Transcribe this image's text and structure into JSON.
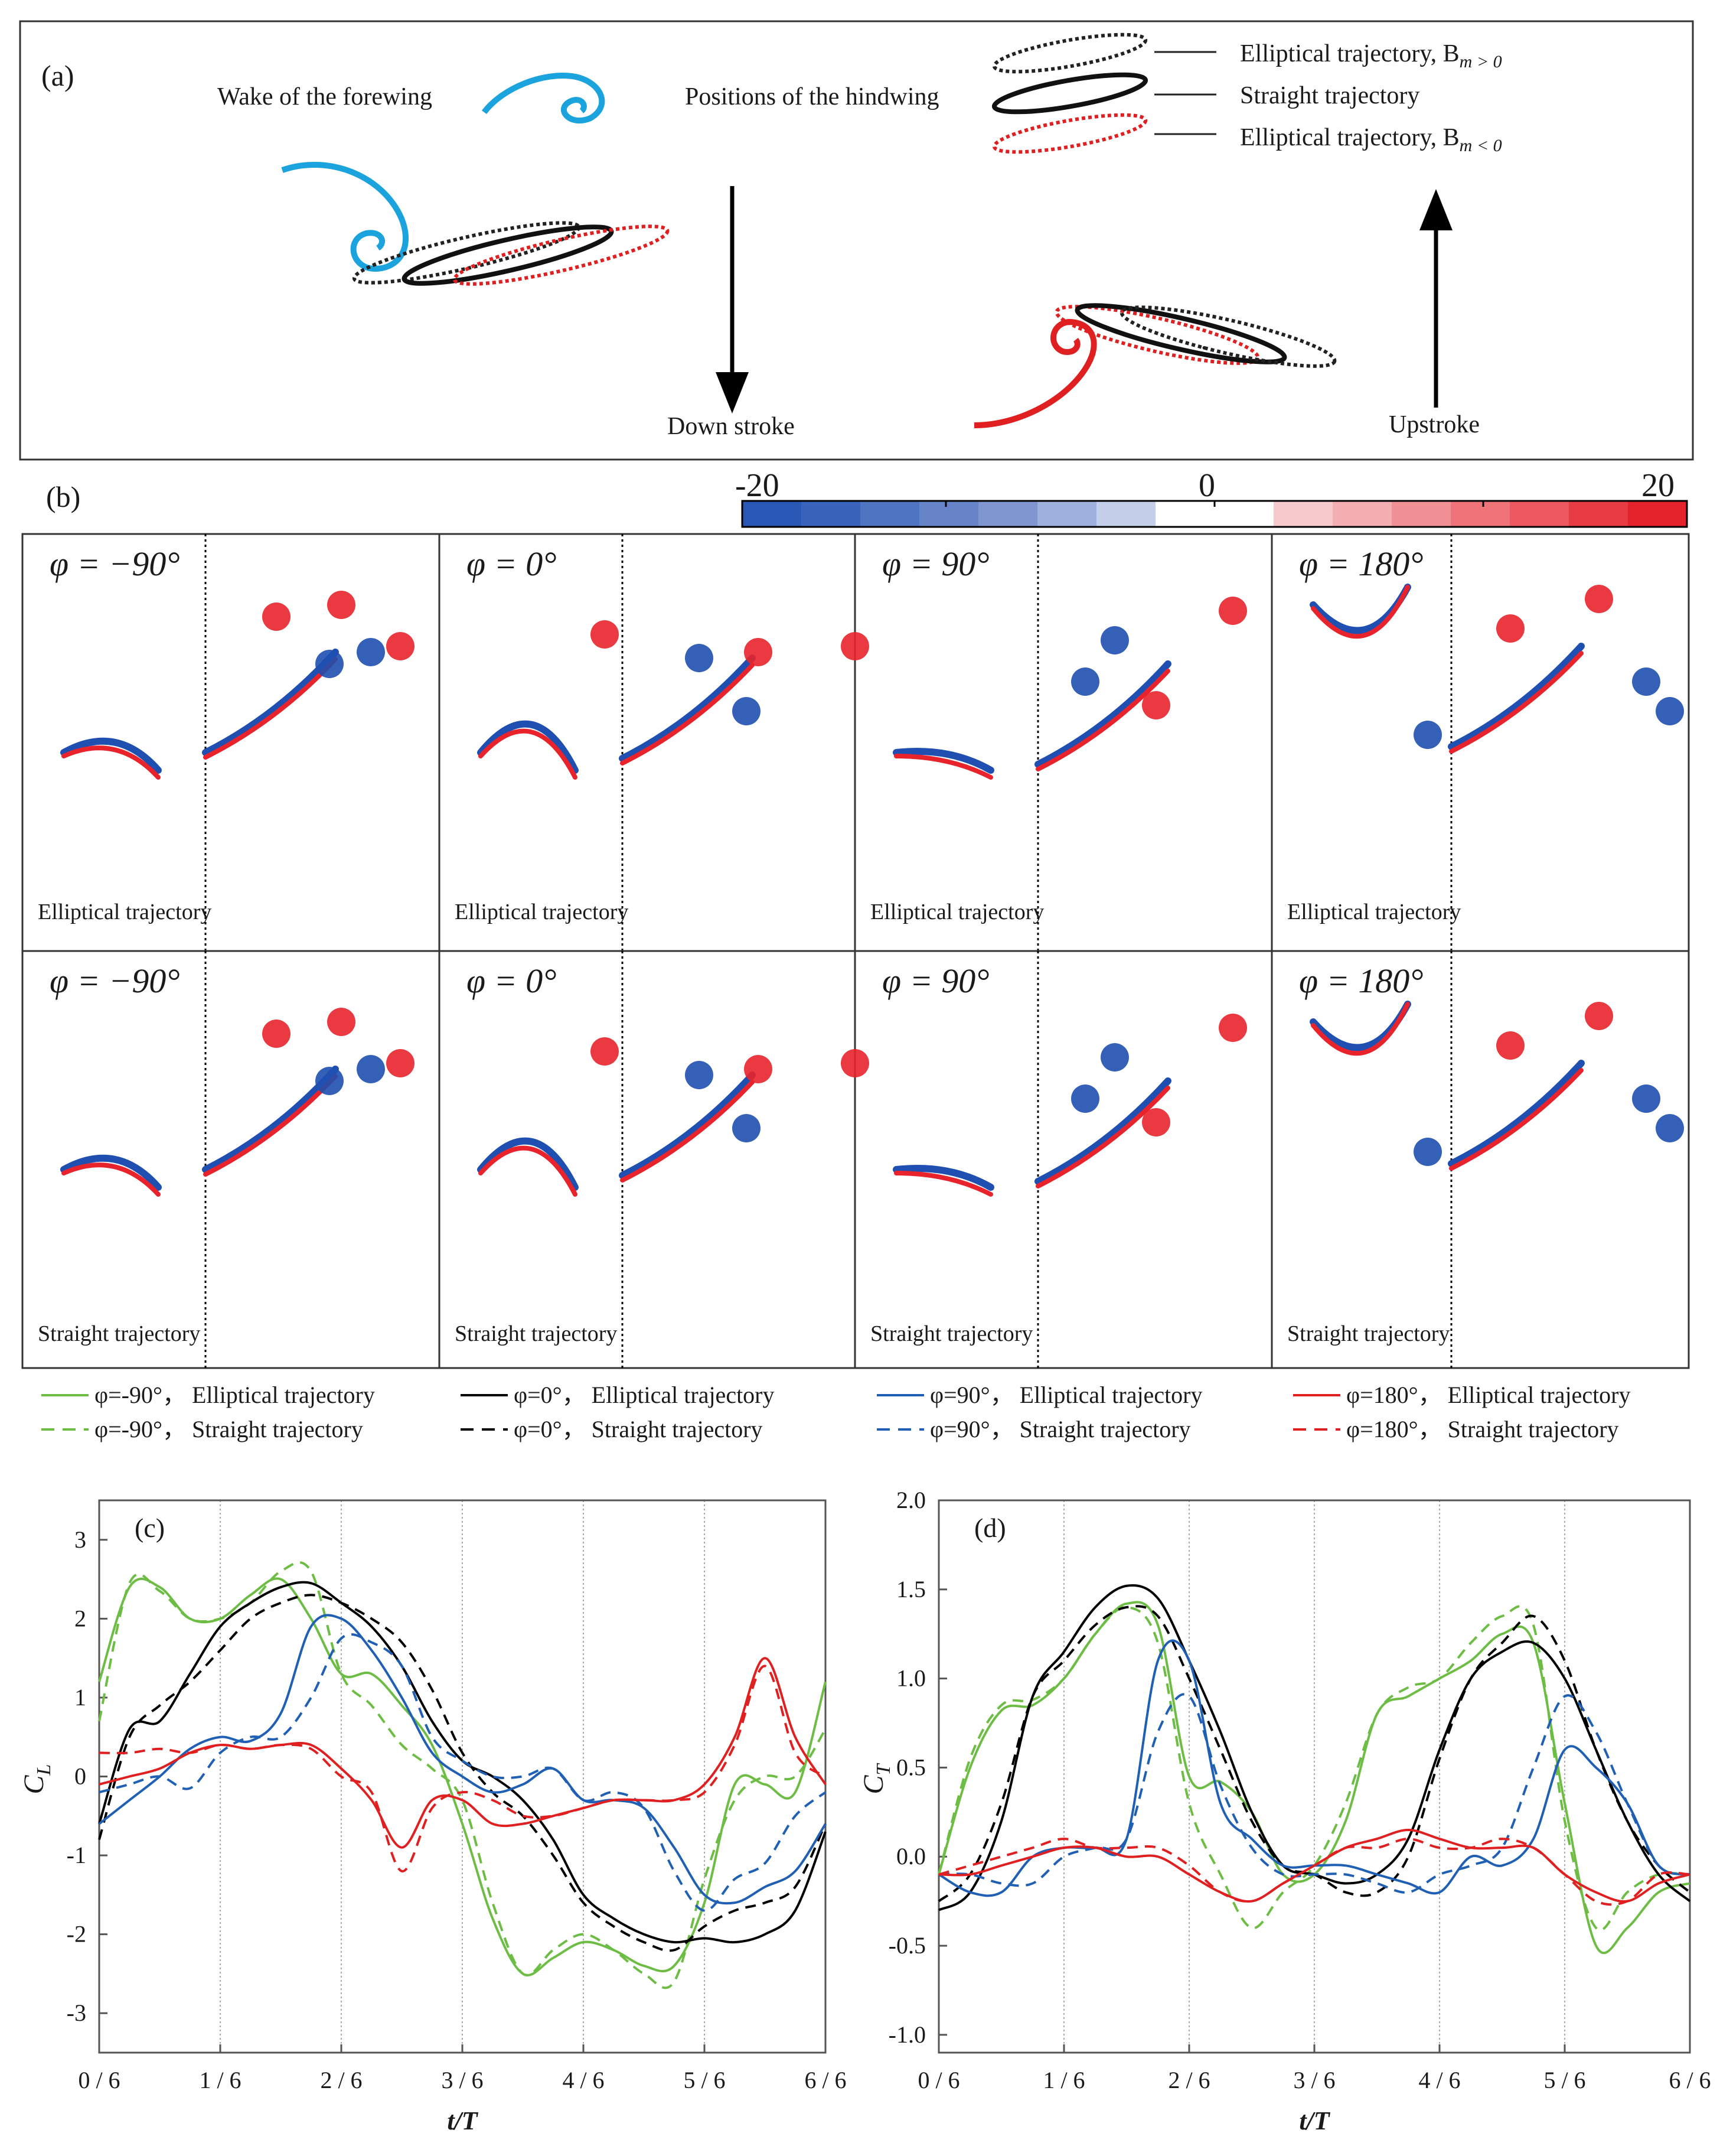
{
  "panel_a": {
    "label": "(a)",
    "wake_label": "Wake of the forewing",
    "positions_label": "Positions of the hindwing",
    "legend": [
      "Elliptical trajectory, B",
      "Straight trajectory",
      "Elliptical trajectory, B"
    ],
    "bm_pos": "m > 0",
    "bm_neg": "m < 0",
    "down_label": "Down stroke",
    "up_label": "Upstroke"
  },
  "panel_b": {
    "label": "(b)",
    "colorbar": {
      "min": "-20",
      "mid": "0",
      "max": "20"
    },
    "phases": [
      "φ = −90°",
      "φ = 0°",
      "φ = 90°",
      "φ = 180°"
    ],
    "row_labels": [
      "Elliptical trajectory",
      "Straight trajectory"
    ],
    "colors": {
      "red": "#e8232b",
      "blue": "#1f4fb0"
    }
  },
  "legend": {
    "items": [
      {
        "label": "φ=-90°， Elliptical trajectory",
        "color": "#6dbd45",
        "dash": false
      },
      {
        "label": "φ=0°， Elliptical trajectory",
        "color": "#000000",
        "dash": false
      },
      {
        "label": "φ=90°， Elliptical trajectory",
        "color": "#1f5fb4",
        "dash": false
      },
      {
        "label": "φ=180°， Elliptical trajectory",
        "color": "#e02020",
        "dash": false
      },
      {
        "label": "φ=-90°， Straight trajectory",
        "color": "#6dbd45",
        "dash": true
      },
      {
        "label": "φ=0°， Straight trajectory",
        "color": "#000000",
        "dash": true
      },
      {
        "label": "φ=90°， Straight trajectory",
        "color": "#1f5fb4",
        "dash": true
      },
      {
        "label": "φ=180°， Straight trajectory",
        "color": "#e02020",
        "dash": true
      }
    ]
  },
  "chart_data": [
    {
      "type": "line",
      "label": "(c)",
      "ylabel": "C",
      "ysub": "L",
      "xlabel": "t/T",
      "xticks": [
        "0 / 6",
        "1 / 6",
        "2 / 6",
        "3 / 6",
        "4 / 6",
        "5 / 6",
        "6 / 6"
      ],
      "yticks": [
        "-3",
        "-2",
        "-1",
        "0",
        "1",
        "2",
        "3"
      ],
      "xlim": [
        0,
        6
      ],
      "ylim": [
        -3.5,
        3.5
      ],
      "x": [
        0,
        0.25,
        0.5,
        0.75,
        1,
        1.25,
        1.5,
        1.75,
        2,
        2.25,
        2.5,
        2.75,
        3,
        3.25,
        3.5,
        3.75,
        4,
        4.25,
        4.5,
        4.75,
        5,
        5.25,
        5.5,
        5.75,
        6
      ],
      "series": [
        {
          "name": "φ=-90°, Elliptical",
          "color": "#6dbd45",
          "dash": false,
          "values": [
            1.2,
            2.4,
            2.4,
            2.0,
            2.0,
            2.3,
            2.5,
            2.0,
            1.3,
            1.3,
            0.9,
            0.4,
            -0.6,
            -1.8,
            -2.5,
            -2.3,
            -2.1,
            -2.2,
            -2.4,
            -2.4,
            -1.6,
            -0.1,
            -0.1,
            -0.2,
            1.2
          ]
        },
        {
          "name": "φ=-90°, Straight",
          "color": "#6dbd45",
          "dash": true,
          "values": [
            0.7,
            2.45,
            2.35,
            2.0,
            2.0,
            2.2,
            2.6,
            2.6,
            1.3,
            0.9,
            0.4,
            0.1,
            -0.3,
            -1.6,
            -2.5,
            -2.2,
            -2.0,
            -2.2,
            -2.5,
            -2.6,
            -1.3,
            -0.3,
            0.0,
            0.0,
            0.6
          ]
        },
        {
          "name": "φ=0°, Elliptical",
          "color": "#000000",
          "dash": false,
          "values": [
            -0.6,
            0.6,
            0.7,
            1.3,
            1.9,
            2.2,
            2.4,
            2.45,
            2.2,
            1.9,
            1.4,
            0.7,
            0.2,
            0.0,
            -0.3,
            -0.8,
            -1.5,
            -1.8,
            -2.0,
            -2.1,
            -2.05,
            -2.1,
            -2.0,
            -1.7,
            -0.7
          ]
        },
        {
          "name": "φ=0°, Straight",
          "color": "#000000",
          "dash": true,
          "values": [
            -0.8,
            0.5,
            0.9,
            1.2,
            1.6,
            2.0,
            2.2,
            2.3,
            2.2,
            2.0,
            1.7,
            1.1,
            0.3,
            -0.2,
            -0.5,
            -1.0,
            -1.6,
            -1.9,
            -2.1,
            -2.2,
            -1.9,
            -1.7,
            -1.6,
            -1.4,
            -0.6
          ]
        },
        {
          "name": "φ=90°, Elliptical",
          "color": "#1f5fb4",
          "dash": false,
          "values": [
            -0.6,
            -0.3,
            0.0,
            0.35,
            0.5,
            0.45,
            0.8,
            1.9,
            2.0,
            1.6,
            1.0,
            0.3,
            0.0,
            -0.2,
            -0.1,
            0.1,
            -0.3,
            -0.3,
            -0.4,
            -0.9,
            -1.5,
            -1.6,
            -1.4,
            -1.2,
            -0.6
          ]
        },
        {
          "name": "φ=90°, Straight",
          "color": "#1f5fb4",
          "dash": true,
          "values": [
            -0.2,
            -0.1,
            0.0,
            -0.15,
            0.3,
            0.5,
            0.5,
            1.0,
            1.75,
            1.7,
            1.4,
            0.5,
            0.2,
            0.0,
            0.0,
            0.1,
            -0.3,
            -0.2,
            -0.4,
            -1.2,
            -1.7,
            -1.3,
            -1.1,
            -0.5,
            -0.2
          ]
        },
        {
          "name": "φ=180°, Elliptical",
          "color": "#e02020",
          "dash": false,
          "values": [
            -0.1,
            0.0,
            0.1,
            0.3,
            0.4,
            0.35,
            0.4,
            0.4,
            0.1,
            -0.3,
            -0.9,
            -0.3,
            -0.3,
            -0.6,
            -0.6,
            -0.5,
            -0.4,
            -0.3,
            -0.3,
            -0.3,
            -0.1,
            0.5,
            1.5,
            0.5,
            -0.1
          ]
        },
        {
          "name": "φ=180°, Straight",
          "color": "#e02020",
          "dash": true,
          "values": [
            0.3,
            0.3,
            0.35,
            0.3,
            0.4,
            0.35,
            0.4,
            0.35,
            0.0,
            -0.2,
            -1.2,
            -0.4,
            -0.2,
            -0.3,
            -0.5,
            -0.5,
            -0.4,
            -0.3,
            -0.3,
            -0.3,
            -0.2,
            0.4,
            1.4,
            0.3,
            0.0
          ]
        }
      ]
    },
    {
      "type": "line",
      "label": "(d)",
      "ylabel": "C",
      "ysub": "T",
      "xlabel": "t/T",
      "xticks": [
        "0 / 6",
        "1 / 6",
        "2 / 6",
        "3 / 6",
        "4 / 6",
        "5 / 6",
        "6 / 6"
      ],
      "yticks": [
        "-1.0",
        "-0.5",
        "0.0",
        "0.5",
        "1.0",
        "1.5",
        "2.0"
      ],
      "xlim": [
        0,
        6
      ],
      "ylim": [
        -1.1,
        2.0
      ],
      "x": [
        0,
        0.25,
        0.5,
        0.75,
        1,
        1.25,
        1.5,
        1.75,
        2,
        2.25,
        2.5,
        2.75,
        3,
        3.25,
        3.5,
        3.75,
        4,
        4.25,
        4.5,
        4.75,
        5,
        5.25,
        5.5,
        5.75,
        6
      ],
      "series": [
        {
          "name": "φ=-90°, Elliptical",
          "color": "#6dbd45",
          "dash": false,
          "values": [
            -0.1,
            0.5,
            0.82,
            0.85,
            1.0,
            1.25,
            1.42,
            1.3,
            0.45,
            0.42,
            0.25,
            -0.1,
            -0.1,
            0.2,
            0.8,
            0.9,
            1.0,
            1.1,
            1.25,
            1.2,
            0.3,
            -0.5,
            -0.4,
            -0.2,
            -0.15
          ]
        },
        {
          "name": "φ=-90°, Straight",
          "color": "#6dbd45",
          "dash": true,
          "values": [
            -0.1,
            0.55,
            0.85,
            0.88,
            1.0,
            1.25,
            1.4,
            1.2,
            0.3,
            -0.1,
            -0.4,
            -0.2,
            -0.05,
            0.3,
            0.8,
            0.95,
            1.0,
            1.2,
            1.35,
            1.3,
            0.2,
            -0.4,
            -0.2,
            -0.1,
            -0.1
          ]
        },
        {
          "name": "φ=0°, Elliptical",
          "color": "#000000",
          "dash": false,
          "values": [
            -0.3,
            -0.2,
            0.2,
            0.9,
            1.15,
            1.4,
            1.52,
            1.45,
            1.1,
            0.7,
            0.25,
            -0.05,
            -0.1,
            -0.15,
            -0.1,
            0.1,
            0.6,
            1.0,
            1.15,
            1.2,
            1.0,
            0.6,
            0.2,
            -0.1,
            -0.25
          ]
        },
        {
          "name": "φ=0°, Straight",
          "color": "#000000",
          "dash": true,
          "values": [
            -0.25,
            -0.1,
            0.3,
            0.9,
            1.1,
            1.3,
            1.4,
            1.35,
            1.0,
            0.6,
            0.2,
            -0.05,
            -0.1,
            -0.2,
            -0.2,
            0.0,
            0.55,
            1.0,
            1.2,
            1.35,
            1.1,
            0.6,
            0.2,
            -0.05,
            -0.2
          ]
        },
        {
          "name": "φ=90°, Elliptical",
          "color": "#1f5fb4",
          "dash": false,
          "values": [
            -0.1,
            -0.2,
            -0.2,
            0.0,
            0.05,
            0.05,
            0.1,
            1.1,
            1.1,
            0.3,
            0.1,
            -0.05,
            -0.05,
            -0.05,
            -0.1,
            -0.15,
            -0.2,
            0.0,
            -0.05,
            0.1,
            0.6,
            0.5,
            0.3,
            -0.05,
            -0.1
          ]
        },
        {
          "name": "φ=90°, Straight",
          "color": "#1f5fb4",
          "dash": true,
          "values": [
            -0.1,
            -0.1,
            -0.15,
            -0.15,
            0.0,
            0.05,
            0.1,
            0.7,
            0.9,
            0.4,
            0.05,
            -0.1,
            -0.1,
            -0.1,
            -0.15,
            -0.2,
            -0.1,
            -0.05,
            0.05,
            0.5,
            0.9,
            0.7,
            0.3,
            -0.05,
            -0.1
          ]
        },
        {
          "name": "φ=180°, Elliptical",
          "color": "#e02020",
          "dash": false,
          "values": [
            -0.1,
            -0.1,
            -0.05,
            0.0,
            0.05,
            0.05,
            0.0,
            0.0,
            -0.1,
            -0.2,
            -0.25,
            -0.15,
            -0.05,
            0.05,
            0.1,
            0.15,
            0.1,
            0.05,
            0.05,
            0.05,
            -0.1,
            -0.2,
            -0.25,
            -0.15,
            -0.1
          ]
        },
        {
          "name": "φ=180°, Straight",
          "color": "#e02020",
          "dash": true,
          "values": [
            -0.1,
            -0.05,
            0.0,
            0.05,
            0.1,
            0.05,
            0.05,
            0.05,
            -0.05,
            -0.2,
            -0.25,
            -0.15,
            -0.05,
            0.05,
            0.05,
            0.1,
            0.05,
            0.05,
            0.1,
            0.05,
            -0.1,
            -0.25,
            -0.25,
            -0.1,
            -0.1
          ]
        }
      ]
    }
  ]
}
